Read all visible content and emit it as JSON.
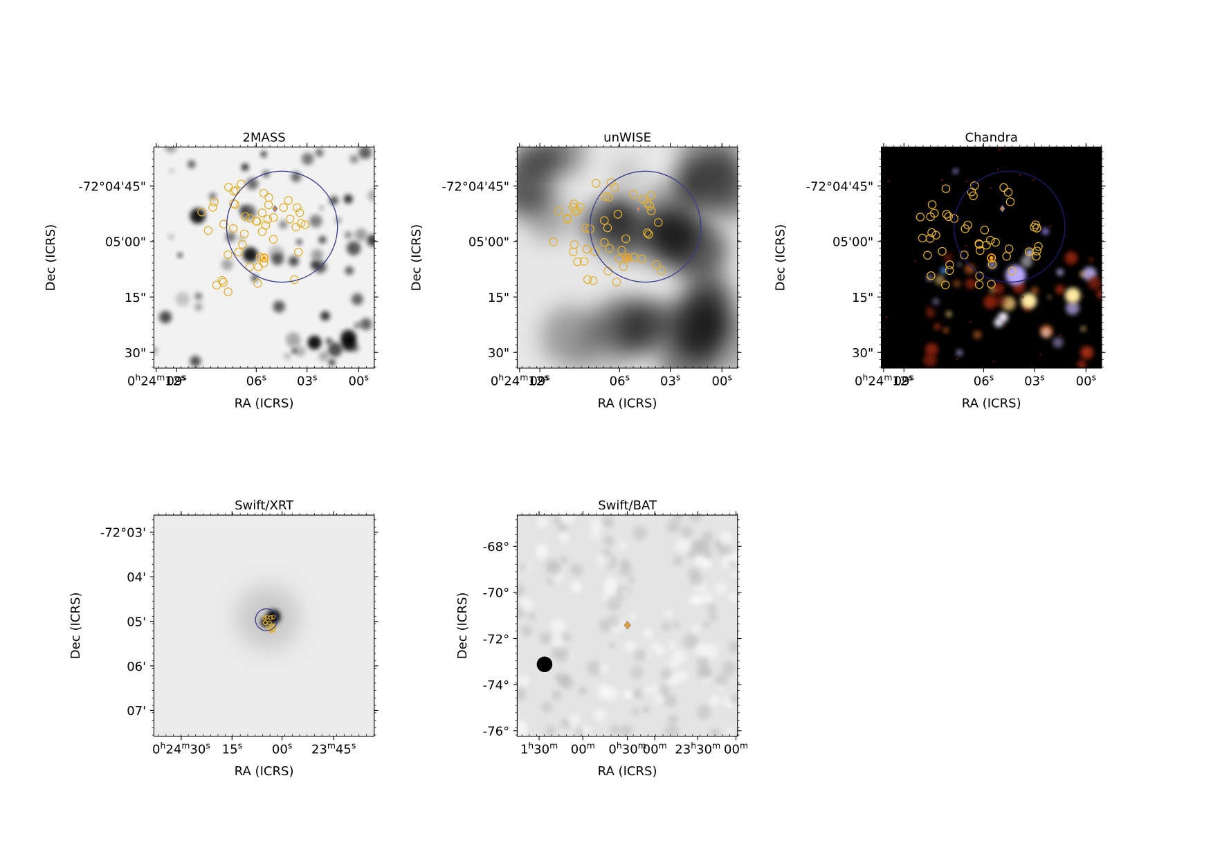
{
  "panels": [
    {
      "title": "2MASS",
      "x_label": "RA (ICRS)",
      "y_label": "Dec (ICRS)",
      "x_ticks": [
        "0h24m12s",
        "09s",
        "06s",
        "03s",
        "00s"
      ],
      "y_ticks": [
        "-72°04'45\"",
        "05'00\"",
        "15\"",
        "30\""
      ]
    },
    {
      "title": "unWISE",
      "x_label": "RA (ICRS)",
      "y_label": "Dec (ICRS)",
      "x_ticks": [
        "0h24m12s",
        "09s",
        "06s",
        "03s",
        "00s"
      ],
      "y_ticks": [
        "-72°04'45\"",
        "05'00\"",
        "15\"",
        "30\""
      ]
    },
    {
      "title": "Chandra",
      "x_label": "RA (ICRS)",
      "y_label": "Dec (ICRS)",
      "x_ticks": [
        "0h24m12s",
        "09s",
        "06s",
        "03s",
        "00s"
      ],
      "y_ticks": [
        "-72°04'45\"",
        "05'00\"",
        "15\"",
        "30\""
      ]
    },
    {
      "title": "Swift/XRT",
      "x_label": "RA (ICRS)",
      "y_label": "Dec (ICRS)",
      "x_ticks": [
        "0h24m30s",
        "15s",
        "00s",
        "23m45s"
      ],
      "y_ticks": [
        "-72°03'",
        "04'",
        "05'",
        "06'",
        "07'"
      ]
    },
    {
      "title": "Swift/BAT",
      "x_label": "RA (ICRS)",
      "y_label": "Dec (ICRS)",
      "x_ticks": [
        "1h30m",
        "00m",
        "0h30m",
        "00m",
        "23h30m",
        "00m"
      ],
      "y_ticks": [
        "-68°",
        "-70°",
        "-72°",
        "-74°",
        "-76°"
      ]
    }
  ]
}
